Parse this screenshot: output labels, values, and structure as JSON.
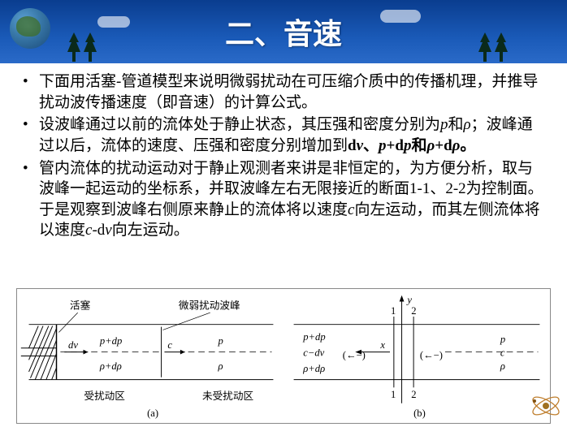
{
  "header": {
    "title": "二、音速",
    "bg_gradient": [
      "#0a3d8f",
      "#1a5ab8",
      "#2a6ac8"
    ],
    "title_color": "#ffffff"
  },
  "tree_color": "#0a2a1a",
  "bullets": [
    {
      "parts": [
        {
          "text": "下面用活塞-管道模型来说明微弱扰动在可压缩介质中的传播机理，并推导扰动波传播速度（即音速）的计算公式。",
          "bold": false
        }
      ]
    },
    {
      "parts": [
        {
          "text": "设波峰通过以前的流体处于静止状态，其压强和密度分别为",
          "bold": false
        },
        {
          "text": "p",
          "italic": true
        },
        {
          "text": "和",
          "bold": false
        },
        {
          "text": "ρ",
          "italic": true
        },
        {
          "text": "；波峰通过以后，流体的速度、压强和密度分别增加到",
          "bold": false
        },
        {
          "text": "d",
          "bold": true
        },
        {
          "text": "v",
          "bold": true,
          "italic": true
        },
        {
          "text": "、",
          "bold": true
        },
        {
          "text": "p",
          "bold": true,
          "italic": true
        },
        {
          "text": "+d",
          "bold": true
        },
        {
          "text": "p",
          "bold": true,
          "italic": true
        },
        {
          "text": "和",
          "bold": true
        },
        {
          "text": "ρ",
          "bold": true,
          "italic": true
        },
        {
          "text": "+d",
          "bold": true
        },
        {
          "text": "ρ",
          "bold": true,
          "italic": true
        },
        {
          "text": "。",
          "bold": true
        }
      ]
    },
    {
      "parts": [
        {
          "text": "管内流体的扰动运动对于静止观测者来讲是非恒定的，为方便分析，取与波峰一起运动的坐标系，并取波峰左右无限接近的断面1-1、2-2为控制面。于是观察到波峰右侧原来静止的流体将以速度",
          "bold": false
        },
        {
          "text": "c",
          "italic": true
        },
        {
          "text": "向左运动，而其左侧流体将以速度",
          "bold": false
        },
        {
          "text": "c",
          "italic": true
        },
        {
          "text": "-d",
          "bold": false
        },
        {
          "text": "v",
          "italic": true
        },
        {
          "text": "向左运动。",
          "bold": false
        }
      ]
    }
  ],
  "diagram": {
    "labels": {
      "piston": "活塞",
      "weak_wave": "微弱扰动波峰",
      "disturbed": "受扰动区",
      "undisturbed": "未受扰动区",
      "a_label": "(a)",
      "b_label": "(b)",
      "p_dp": "p+dp",
      "rho_drho": "ρ+dρ",
      "c_dv": "c−dv",
      "p": "p",
      "rho": "ρ",
      "c": "c",
      "dv": "dv",
      "x": "x",
      "y": "y",
      "one": "1",
      "two": "2"
    },
    "line_color": "#000000"
  }
}
